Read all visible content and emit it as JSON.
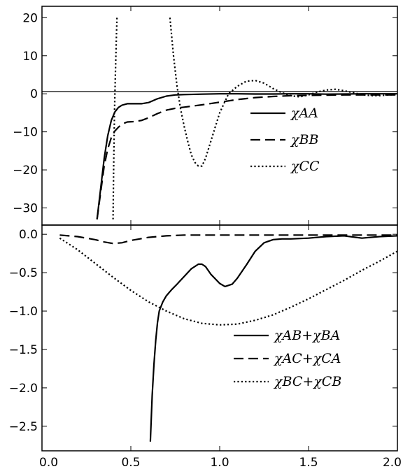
{
  "chart_data": [
    {
      "type": "line",
      "panel": "top",
      "xlim": [
        0.0,
        2.0
      ],
      "ylim": [
        -34.5,
        23
      ],
      "yticks": [
        20,
        10,
        0,
        -10,
        -20,
        -30
      ],
      "ytick_labels": [
        "20",
        "10",
        "0",
        "−10",
        "−20",
        "−30"
      ],
      "xticks": [
        0.0,
        0.5,
        1.0,
        1.5,
        2.0
      ],
      "zero_line": true,
      "legend_position": "right",
      "series": [
        {
          "name": "χAA",
          "style": "solid",
          "x": [
            0.31,
            0.33,
            0.35,
            0.37,
            0.39,
            0.41,
            0.43,
            0.45,
            0.48,
            0.52,
            0.56,
            0.6,
            0.65,
            0.7,
            0.75,
            0.8,
            0.9,
            1.0,
            1.1,
            1.2,
            1.3,
            1.4,
            1.5,
            1.6,
            1.7,
            1.8,
            1.9,
            2.0
          ],
          "y": [
            -33.0,
            -25.0,
            -17.0,
            -11.0,
            -7.0,
            -4.8,
            -3.6,
            -3.0,
            -2.6,
            -2.6,
            -2.6,
            -2.3,
            -1.3,
            -0.6,
            -0.3,
            -0.2,
            -0.1,
            0.0,
            0.0,
            -0.05,
            -0.05,
            0.0,
            0.0,
            -0.1,
            -0.05,
            0.0,
            0.0,
            0.0
          ]
        },
        {
          "name": "χBB",
          "style": "dashed",
          "x": [
            0.31,
            0.33,
            0.35,
            0.37,
            0.39,
            0.41,
            0.43,
            0.45,
            0.48,
            0.52,
            0.56,
            0.6,
            0.65,
            0.7,
            0.75,
            0.8,
            0.9,
            1.0,
            1.1,
            1.2,
            1.3,
            1.4,
            1.5,
            1.6,
            1.7,
            1.8,
            1.9,
            2.0
          ],
          "y": [
            -33.0,
            -26.0,
            -19.0,
            -14.5,
            -11.5,
            -9.8,
            -8.8,
            -8.0,
            -7.4,
            -7.3,
            -7.0,
            -6.3,
            -5.2,
            -4.3,
            -3.8,
            -3.5,
            -2.9,
            -2.2,
            -1.5,
            -1.0,
            -0.7,
            -0.5,
            -0.4,
            -0.35,
            -0.3,
            -0.3,
            -0.3,
            -0.3
          ]
        },
        {
          "name": "χCC",
          "style": "dotted",
          "x": [
            0.4,
            0.403,
            0.408,
            0.413,
            0.418,
            0.422
          ],
          "y": [
            -33.0,
            -20.0,
            -5.0,
            5.0,
            14.0,
            20.0
          ],
          "x2": [
            0.72,
            0.74,
            0.76,
            0.78,
            0.8,
            0.82,
            0.84,
            0.86,
            0.88,
            0.9,
            0.92,
            0.95,
            1.0,
            1.05,
            1.1,
            1.15,
            1.2,
            1.25,
            1.3,
            1.35,
            1.4,
            1.45,
            1.5,
            1.55,
            1.6,
            1.65,
            1.7,
            1.75,
            1.8,
            1.85,
            1.9,
            1.95,
            2.0
          ],
          "y2": [
            20.0,
            10.0,
            2.0,
            -4.0,
            -8.5,
            -12.5,
            -16.0,
            -18.0,
            -19.0,
            -19.0,
            -17.0,
            -12.5,
            -5.0,
            0.0,
            2.0,
            3.3,
            3.5,
            2.8,
            1.4,
            0.3,
            -0.5,
            -0.8,
            -0.3,
            0.5,
            1.0,
            1.2,
            0.8,
            0.3,
            -0.2,
            -0.5,
            -0.5,
            -0.3,
            -0.2
          ]
        }
      ]
    },
    {
      "type": "line",
      "panel": "bottom",
      "xlim": [
        0.0,
        2.0
      ],
      "ylim": [
        -2.82,
        0.12
      ],
      "yticks": [
        0.0,
        -0.5,
        -1.0,
        -1.5,
        -2.0,
        -2.5
      ],
      "ytick_labels": [
        "0.0",
        "−0.5",
        "−1.0",
        "−1.5",
        "−2.0",
        "−2.5"
      ],
      "xticks": [
        0.0,
        0.5,
        1.0,
        1.5,
        2.0
      ],
      "xtick_labels": [
        "0.0",
        "0.5",
        "1.0",
        "1.5",
        "2.0"
      ],
      "legend_position": "right",
      "series": [
        {
          "name": "χAB+χBA",
          "style": "solid",
          "x": [
            0.61,
            0.615,
            0.62,
            0.63,
            0.64,
            0.65,
            0.66,
            0.68,
            0.7,
            0.73,
            0.76,
            0.8,
            0.84,
            0.88,
            0.9,
            0.92,
            0.95,
            1.0,
            1.03,
            1.07,
            1.1,
            1.15,
            1.2,
            1.25,
            1.3,
            1.35,
            1.4,
            1.5,
            1.6,
            1.7,
            1.8,
            1.9,
            2.0
          ],
          "y": [
            -2.7,
            -2.4,
            -2.1,
            -1.7,
            -1.38,
            -1.15,
            -1.0,
            -0.88,
            -0.8,
            -0.72,
            -0.65,
            -0.55,
            -0.45,
            -0.39,
            -0.39,
            -0.42,
            -0.52,
            -0.64,
            -0.68,
            -0.65,
            -0.57,
            -0.4,
            -0.22,
            -0.11,
            -0.07,
            -0.06,
            -0.06,
            -0.05,
            -0.03,
            -0.02,
            -0.05,
            -0.03,
            -0.02
          ]
        },
        {
          "name": "χAC+χCA",
          "style": "dashed",
          "x": [
            0.1,
            0.2,
            0.3,
            0.35,
            0.4,
            0.45,
            0.5,
            0.6,
            0.7,
            0.8,
            0.9,
            1.0,
            1.2,
            1.4,
            1.6,
            1.8,
            2.0
          ],
          "y": [
            -0.01,
            -0.03,
            -0.07,
            -0.1,
            -0.12,
            -0.11,
            -0.08,
            -0.04,
            -0.02,
            -0.01,
            -0.01,
            -0.01,
            -0.01,
            -0.01,
            -0.01,
            -0.01,
            -0.01
          ]
        },
        {
          "name": "χBC+χCB",
          "style": "dotted",
          "x": [
            0.1,
            0.2,
            0.3,
            0.4,
            0.5,
            0.6,
            0.7,
            0.8,
            0.9,
            1.0,
            1.1,
            1.2,
            1.3,
            1.4,
            1.5,
            1.6,
            1.7,
            1.8,
            1.9,
            2.0
          ],
          "y": [
            -0.05,
            -0.2,
            -0.38,
            -0.56,
            -0.73,
            -0.88,
            -1.0,
            -1.1,
            -1.16,
            -1.18,
            -1.17,
            -1.12,
            -1.05,
            -0.95,
            -0.84,
            -0.72,
            -0.6,
            -0.47,
            -0.35,
            -0.22
          ]
        }
      ]
    }
  ]
}
